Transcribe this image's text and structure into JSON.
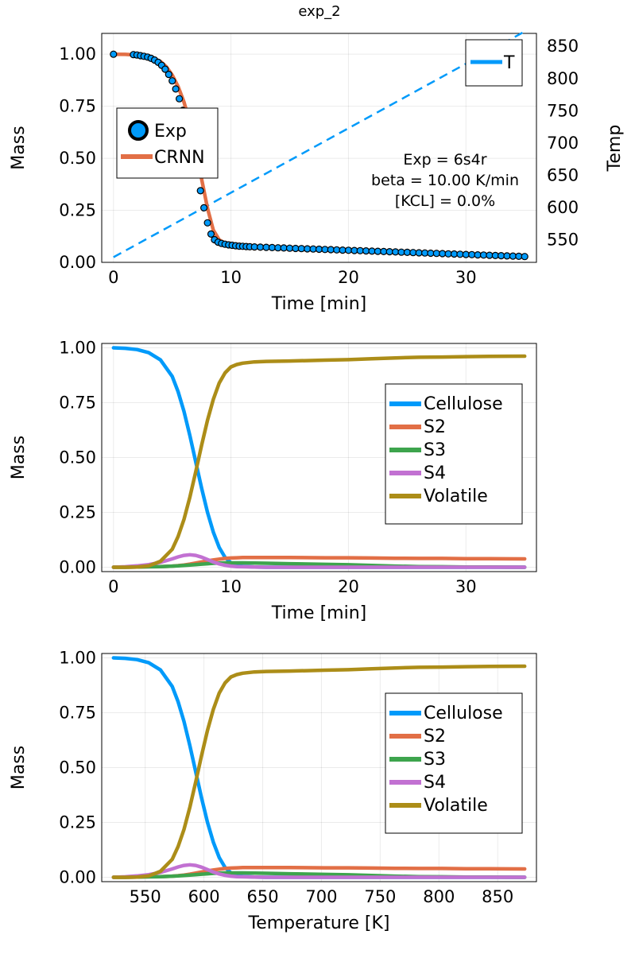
{
  "chart_data": [
    {
      "type": "line",
      "title": "exp_2",
      "xlabel": "Time [min]",
      "ylabel": "Mass",
      "y2label": "Temp",
      "xlim": [
        -1,
        36
      ],
      "ylim": [
        0,
        1.1
      ],
      "y2lim": [
        515,
        870
      ],
      "xticks": [
        0,
        10,
        20,
        30
      ],
      "yticks": [
        0.0,
        0.25,
        0.5,
        0.75,
        1.0
      ],
      "ytick_labels": [
        "0.00",
        "0.25",
        "0.50",
        "0.75",
        "1.00"
      ],
      "y2ticks": [
        550,
        600,
        650,
        700,
        750,
        800,
        850
      ],
      "grid": true,
      "legend_left": "middle-left",
      "legend_right": "top-right",
      "annotation": [
        "Exp = 6s4r",
        "beta = 10.00 K/min",
        "[KCL] = 0.0%"
      ],
      "colors": {
        "blue": "#009AFA",
        "orange": "#E26F46",
        "green": "#3DA44D",
        "purple": "#C271D2",
        "olive": "#AC8D18"
      },
      "series": [
        {
          "name": "Exp",
          "kind": "scatter",
          "x": [
            0,
            1.7,
            2.0,
            2.3,
            2.6,
            2.9,
            3.2,
            3.5,
            3.8,
            4.1,
            4.4,
            4.7,
            5.0,
            5.3,
            5.6,
            5.9,
            6.2,
            6.5,
            6.8,
            7.1,
            7.4,
            7.7,
            8.0,
            8.3,
            8.6,
            8.9,
            9.2,
            9.5,
            9.8,
            10.1,
            10.4,
            10.7,
            11.0,
            11.3,
            11.6,
            12.0,
            12.5,
            13,
            13.5,
            14,
            14.5,
            15,
            15.5,
            16,
            16.5,
            17,
            17.5,
            18,
            18.5,
            19,
            19.5,
            20,
            20.5,
            21,
            21.5,
            22,
            22.5,
            23,
            23.5,
            24,
            24.5,
            25,
            25.5,
            26,
            26.5,
            27,
            27.5,
            28,
            28.5,
            29,
            29.5,
            30,
            30.5,
            31,
            31.5,
            32,
            32.5,
            33,
            33.5,
            34,
            34.5,
            35
          ],
          "y": [
            1.0,
            0.998,
            0.996,
            0.993,
            0.99,
            0.986,
            0.98,
            0.972,
            0.961,
            0.947,
            0.928,
            0.903,
            0.872,
            0.833,
            0.786,
            0.73,
            0.665,
            0.592,
            0.513,
            0.429,
            0.344,
            0.262,
            0.19,
            0.136,
            0.109,
            0.097,
            0.091,
            0.087,
            0.084,
            0.082,
            0.08,
            0.078,
            0.077,
            0.076,
            0.075,
            0.074,
            0.073,
            0.072,
            0.071,
            0.07,
            0.069,
            0.068,
            0.067,
            0.066,
            0.065,
            0.064,
            0.063,
            0.062,
            0.061,
            0.06,
            0.059,
            0.058,
            0.057,
            0.056,
            0.055,
            0.054,
            0.053,
            0.052,
            0.051,
            0.05,
            0.049,
            0.048,
            0.047,
            0.046,
            0.045,
            0.044,
            0.043,
            0.042,
            0.041,
            0.04,
            0.039,
            0.038,
            0.037,
            0.036,
            0.035,
            0.034,
            0.033,
            0.032,
            0.031,
            0.03,
            0.029,
            0.028
          ]
        },
        {
          "name": "CRNN",
          "kind": "line",
          "x": [
            0,
            1,
            2,
            3,
            4,
            4.5,
            5,
            5.5,
            6,
            6.5,
            7,
            7.5,
            8,
            8.5,
            9,
            9.5,
            10,
            10.5,
            11,
            12,
            14,
            16,
            20,
            25,
            30,
            35
          ],
          "y": [
            1.0,
            0.999,
            0.996,
            0.988,
            0.965,
            0.94,
            0.9,
            0.845,
            0.77,
            0.67,
            0.54,
            0.4,
            0.26,
            0.155,
            0.108,
            0.092,
            0.085,
            0.08,
            0.077,
            0.073,
            0.068,
            0.062,
            0.055,
            0.046,
            0.038,
            0.032
          ]
        },
        {
          "name": "T",
          "kind": "dashed-line",
          "axis": "right",
          "x": [
            0,
            35
          ],
          "y": [
            523,
            873
          ]
        }
      ]
    },
    {
      "type": "line",
      "xlabel": "Time [min]",
      "ylabel": "Mass",
      "xlim": [
        -1,
        36
      ],
      "ylim": [
        -0.02,
        1.02
      ],
      "xticks": [
        0,
        10,
        20,
        30
      ],
      "yticks": [
        0.0,
        0.25,
        0.5,
        0.75,
        1.0
      ],
      "ytick_labels": [
        "0.00",
        "0.25",
        "0.50",
        "0.75",
        "1.00"
      ],
      "grid": true,
      "legend": "right",
      "x": [
        0,
        1,
        2,
        3,
        4,
        5,
        5.5,
        6,
        6.5,
        7,
        7.5,
        8,
        8.5,
        9,
        9.5,
        10,
        10.5,
        11,
        12,
        13,
        15,
        18,
        20,
        22,
        24,
        26,
        28,
        30,
        32,
        35
      ],
      "series": [
        {
          "name": "Cellulose",
          "values": [
            1.0,
            0.998,
            0.992,
            0.978,
            0.945,
            0.87,
            0.8,
            0.71,
            0.6,
            0.48,
            0.36,
            0.25,
            0.16,
            0.09,
            0.045,
            0.02,
            0.01,
            0.004,
            0.001,
            0,
            0,
            0,
            0,
            0,
            0,
            0,
            0,
            0,
            0,
            0
          ]
        },
        {
          "name": "S2",
          "values": [
            0,
            0,
            0.001,
            0.002,
            0.003,
            0.005,
            0.007,
            0.01,
            0.014,
            0.019,
            0.024,
            0.029,
            0.033,
            0.037,
            0.04,
            0.042,
            0.043,
            0.044,
            0.044,
            0.044,
            0.044,
            0.043,
            0.043,
            0.042,
            0.041,
            0.04,
            0.04,
            0.039,
            0.039,
            0.038
          ]
        },
        {
          "name": "S3",
          "values": [
            0,
            0,
            0.001,
            0.002,
            0.003,
            0.005,
            0.006,
            0.008,
            0.01,
            0.012,
            0.014,
            0.016,
            0.018,
            0.019,
            0.02,
            0.02,
            0.02,
            0.02,
            0.019,
            0.018,
            0.016,
            0.013,
            0.011,
            0.008,
            0.005,
            0.003,
            0.002,
            0.001,
            0.001,
            0.0
          ]
        },
        {
          "name": "S4",
          "values": [
            0,
            0.002,
            0.006,
            0.012,
            0.022,
            0.038,
            0.047,
            0.054,
            0.057,
            0.054,
            0.046,
            0.035,
            0.024,
            0.015,
            0.009,
            0.005,
            0.003,
            0.002,
            0.001,
            0,
            0,
            0,
            0,
            0,
            0,
            0,
            0,
            0,
            0,
            0
          ]
        },
        {
          "name": "Volatile",
          "values": [
            0,
            0.0,
            0.001,
            0.006,
            0.027,
            0.082,
            0.14,
            0.218,
            0.319,
            0.435,
            0.556,
            0.67,
            0.765,
            0.839,
            0.886,
            0.913,
            0.924,
            0.93,
            0.936,
            0.938,
            0.94,
            0.944,
            0.946,
            0.95,
            0.954,
            0.957,
            0.958,
            0.96,
            0.961,
            0.962
          ]
        }
      ]
    },
    {
      "type": "line",
      "xlabel": "Temperature [K]",
      "ylabel": "Mass",
      "xlim": [
        513,
        883
      ],
      "ylim": [
        -0.02,
        1.02
      ],
      "xticks": [
        550,
        600,
        650,
        700,
        750,
        800,
        850
      ],
      "yticks": [
        0.0,
        0.25,
        0.5,
        0.75,
        1.0
      ],
      "ytick_labels": [
        "0.00",
        "0.25",
        "0.50",
        "0.75",
        "1.00"
      ],
      "grid": true,
      "legend": "right",
      "x": [
        523,
        533,
        543,
        553,
        563,
        573,
        578,
        583,
        588,
        593,
        598,
        603,
        608,
        613,
        618,
        623,
        628,
        633,
        643,
        653,
        673,
        703,
        723,
        743,
        763,
        783,
        803,
        823,
        843,
        873
      ],
      "series": [
        {
          "name": "Cellulose",
          "values": [
            1.0,
            0.998,
            0.992,
            0.978,
            0.945,
            0.87,
            0.8,
            0.71,
            0.6,
            0.48,
            0.36,
            0.25,
            0.16,
            0.09,
            0.045,
            0.02,
            0.01,
            0.004,
            0.001,
            0,
            0,
            0,
            0,
            0,
            0,
            0,
            0,
            0,
            0,
            0
          ]
        },
        {
          "name": "S2",
          "values": [
            0,
            0,
            0.001,
            0.002,
            0.003,
            0.005,
            0.007,
            0.01,
            0.014,
            0.019,
            0.024,
            0.029,
            0.033,
            0.037,
            0.04,
            0.042,
            0.043,
            0.044,
            0.044,
            0.044,
            0.044,
            0.043,
            0.043,
            0.042,
            0.041,
            0.04,
            0.04,
            0.039,
            0.039,
            0.038
          ]
        },
        {
          "name": "S3",
          "values": [
            0,
            0,
            0.001,
            0.002,
            0.003,
            0.005,
            0.006,
            0.008,
            0.01,
            0.012,
            0.014,
            0.016,
            0.018,
            0.019,
            0.02,
            0.02,
            0.02,
            0.02,
            0.019,
            0.018,
            0.016,
            0.013,
            0.011,
            0.008,
            0.005,
            0.003,
            0.002,
            0.001,
            0.001,
            0.0
          ]
        },
        {
          "name": "S4",
          "values": [
            0,
            0.002,
            0.006,
            0.012,
            0.022,
            0.038,
            0.047,
            0.054,
            0.057,
            0.054,
            0.046,
            0.035,
            0.024,
            0.015,
            0.009,
            0.005,
            0.003,
            0.002,
            0.001,
            0,
            0,
            0,
            0,
            0,
            0,
            0,
            0,
            0,
            0,
            0
          ]
        },
        {
          "name": "Volatile",
          "values": [
            0,
            0.0,
            0.001,
            0.006,
            0.027,
            0.082,
            0.14,
            0.218,
            0.319,
            0.435,
            0.556,
            0.67,
            0.765,
            0.839,
            0.886,
            0.913,
            0.924,
            0.93,
            0.936,
            0.938,
            0.94,
            0.944,
            0.946,
            0.95,
            0.954,
            0.957,
            0.958,
            0.96,
            0.961,
            0.962
          ]
        }
      ]
    }
  ]
}
